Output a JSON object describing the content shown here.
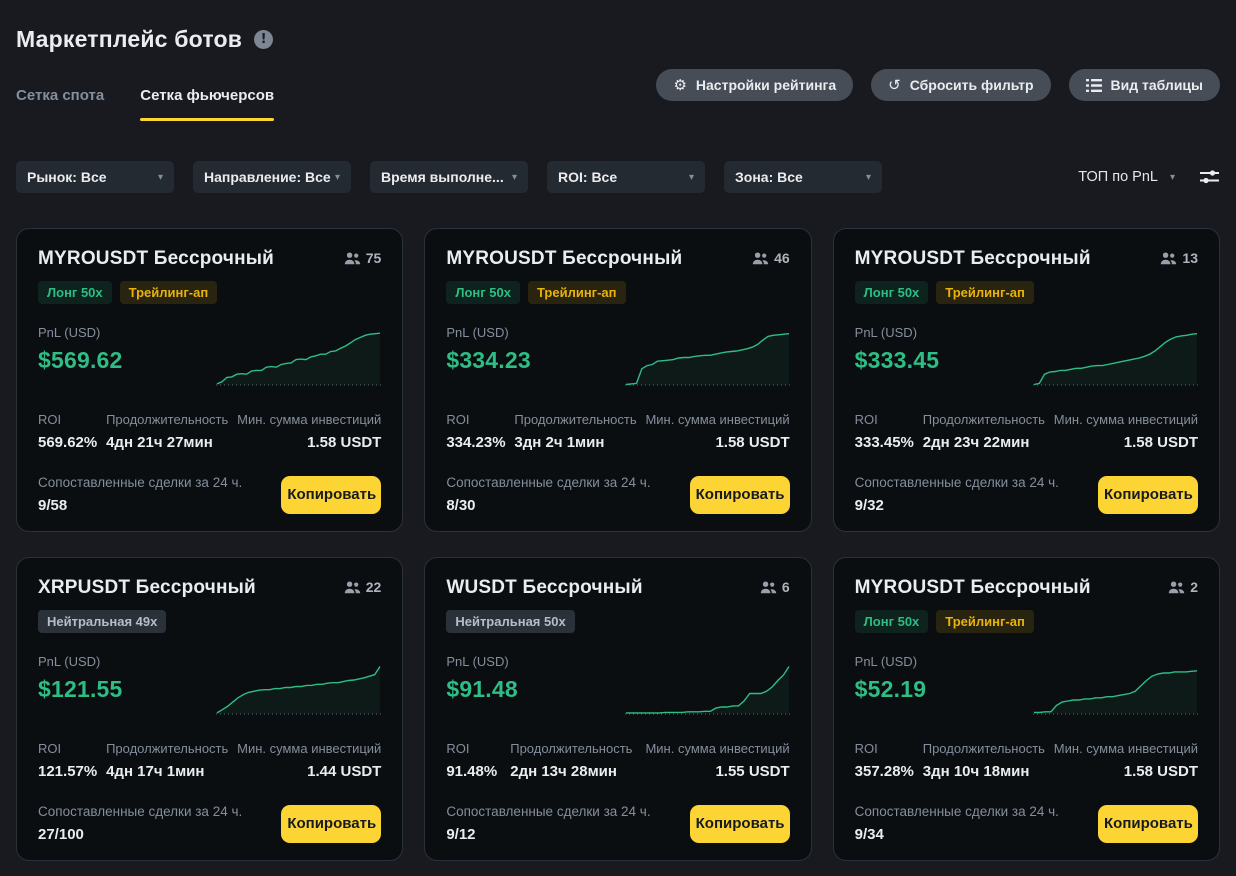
{
  "page": {
    "title": "Маркетплейс ботов"
  },
  "icon_glyphs": {
    "gear": "⚙",
    "reset": "↺",
    "caret": "▾",
    "info": "!"
  },
  "tabs": [
    {
      "label": "Сетка спота",
      "active": false
    },
    {
      "label": "Сетка фьючерсов",
      "active": true
    }
  ],
  "actions": [
    {
      "label": "Настройки рейтинга",
      "icon": "gear-icon"
    },
    {
      "label": "Сбросить фильтр",
      "icon": "reset-icon"
    },
    {
      "label": "Вид таблицы",
      "icon": "table-view-icon"
    }
  ],
  "filters": [
    {
      "label": "Рынок: Все"
    },
    {
      "label": "Направление: Все"
    },
    {
      "label": "Время выполне..."
    },
    {
      "label": "ROI: Все"
    },
    {
      "label": "Зона: Все"
    }
  ],
  "sort": {
    "label": "ТОП по PnL"
  },
  "labels": {
    "pnl": "PnL (USD)",
    "roi": "ROI",
    "duration": "Продолжительность",
    "min_investment": "Мин. сумма инвестиций",
    "matched": "Сопоставленные сделки за 24 ч.",
    "copy": "Копировать"
  },
  "colors": {
    "green": "#2EBD85",
    "yellow": "#FCD535",
    "page_bg": "#181A20",
    "card_bg": "#0B0E11",
    "gray_text": "#848E9C"
  },
  "cards": [
    {
      "title": "MYROUSDT Бессрочный",
      "users": "75",
      "tags": [
        {
          "label": "Лонг 50x",
          "type": "long"
        },
        {
          "label": "Трейлинг-ап",
          "type": "trailing"
        }
      ],
      "pnl": "$569.62",
      "roi": "569.62%",
      "duration": "4дн 21ч 27мин",
      "min_investment": "1.58 USDT",
      "matched": "9/58",
      "spark": [
        2,
        6,
        14,
        15,
        20,
        21,
        20,
        26,
        27,
        27,
        33,
        34,
        33,
        38,
        40,
        41,
        47,
        48,
        47,
        52,
        54,
        57,
        57,
        62,
        63,
        68,
        72,
        78,
        84,
        88,
        92,
        94,
        95,
        96
      ]
    },
    {
      "title": "MYROUSDT Бессрочный",
      "users": "46",
      "tags": [
        {
          "label": "Лонг 50x",
          "type": "long"
        },
        {
          "label": "Трейлинг-ап",
          "type": "trailing"
        }
      ],
      "pnl": "$334.23",
      "roi": "334.23%",
      "duration": "3дн 2ч 1мин",
      "min_investment": "1.58 USDT",
      "matched": "8/30",
      "spark": [
        1,
        2,
        3,
        30,
        36,
        38,
        44,
        45,
        46,
        47,
        50,
        51,
        51,
        53,
        54,
        55,
        55,
        57,
        59,
        61,
        62,
        63,
        65,
        67,
        70,
        75,
        83,
        90,
        92,
        93,
        94,
        95
      ]
    },
    {
      "title": "MYROUSDT Бессрочный",
      "users": "13",
      "tags": [
        {
          "label": "Лонг 50x",
          "type": "long"
        },
        {
          "label": "Трейлинг-ап",
          "type": "trailing"
        }
      ],
      "pnl": "$333.45",
      "roi": "333.45%",
      "duration": "2дн 23ч 22мин",
      "min_investment": "1.58 USDT",
      "matched": "9/32",
      "spark": [
        1,
        3,
        20,
        24,
        25,
        27,
        27,
        29,
        31,
        31,
        33,
        35,
        36,
        36,
        38,
        40,
        42,
        44,
        46,
        48,
        50,
        53,
        57,
        63,
        71,
        79,
        85,
        89,
        91,
        92,
        94,
        95
      ]
    },
    {
      "title": "XRPUSDT Бессрочный",
      "users": "22",
      "tags": [
        {
          "label": "Нейтральная 49x",
          "type": "neutral"
        }
      ],
      "pnl": "$121.55",
      "roi": "121.57%",
      "duration": "4дн 17ч 1мин",
      "min_investment": "1.44 USDT",
      "matched": "27/100",
      "spark": [
        2,
        8,
        14,
        22,
        30,
        36,
        40,
        42,
        44,
        45,
        45,
        47,
        47,
        49,
        49,
        51,
        51,
        53,
        53,
        55,
        55,
        57,
        58,
        58,
        60,
        62,
        63,
        65,
        67,
        70,
        73,
        88
      ]
    },
    {
      "title": "WUSDT Бессрочный",
      "users": "6",
      "tags": [
        {
          "label": "Нейтральная 50x",
          "type": "neutral"
        }
      ],
      "pnl": "$91.48",
      "roi": "91.48%",
      "duration": "2дн 13ч 28мин",
      "min_investment": "1.55 USDT",
      "matched": "9/12",
      "spark": [
        2,
        2,
        2,
        2,
        2,
        2,
        2,
        3,
        3,
        3,
        3,
        4,
        4,
        4,
        5,
        5,
        11,
        13,
        13,
        15,
        15,
        24,
        38,
        38,
        38,
        42,
        50,
        62,
        72,
        88
      ]
    },
    {
      "title": "MYROUSDT Бессрочный",
      "users": "2",
      "tags": [
        {
          "label": "Лонг 50x",
          "type": "long"
        },
        {
          "label": "Трейлинг-ап",
          "type": "trailing"
        }
      ],
      "pnl": "$52.19",
      "roi": "357.28%",
      "duration": "3дн 10ч 18мин",
      "min_investment": "1.58 USDT",
      "matched": "9/34",
      "spark": [
        3,
        3,
        4,
        4,
        16,
        22,
        24,
        26,
        26,
        28,
        28,
        30,
        30,
        32,
        32,
        34,
        36,
        38,
        42,
        52,
        62,
        70,
        74,
        76,
        76,
        78,
        78,
        78,
        79,
        80
      ]
    }
  ]
}
